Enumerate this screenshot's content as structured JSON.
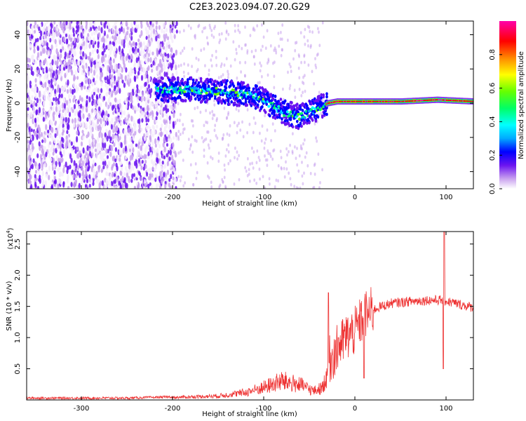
{
  "title": "C2E3.2023.094.07.20.G29",
  "colors": {
    "snr_line": "#ee3333",
    "spectral_colormap": [
      "#f4ecfb",
      "#c9a2ef",
      "#6b14f0",
      "#0000ff",
      "#00aaff",
      "#00ffff",
      "#00ff66",
      "#66ff00",
      "#ffff00",
      "#ff8800",
      "#ff0000",
      "#ff00aa"
    ]
  },
  "chart_data": [
    {
      "type": "heatmap",
      "xlabel": "Height of straight line (km)",
      "ylabel": "Frequency (Hz)",
      "xlim": [
        -360,
        130
      ],
      "ylim": [
        -50,
        48
      ],
      "x_ticks": [
        -300,
        -200,
        -100,
        0,
        100
      ],
      "x_tick_labels": [
        "-300",
        "-200",
        "-100",
        "0",
        "100"
      ],
      "y_ticks": [
        -40,
        -20,
        0,
        20,
        40
      ],
      "y_tick_labels": [
        "-40",
        "-20",
        "0",
        "20",
        "40"
      ],
      "colorbar": {
        "label": "Normalized spectral amplitude",
        "range": [
          0.0,
          1.0
        ],
        "ticks": [
          0.0,
          0.2,
          0.4,
          0.6,
          0.8
        ],
        "tick_labels": [
          "0.0",
          "0.2",
          "0.4",
          "0.6",
          "0.8"
        ]
      },
      "signal_ridge": [
        {
          "x": -215,
          "y": 8
        },
        {
          "x": -180,
          "y": 8
        },
        {
          "x": -150,
          "y": 7
        },
        {
          "x": -120,
          "y": 5
        },
        {
          "x": -100,
          "y": 2
        },
        {
          "x": -80,
          "y": -5
        },
        {
          "x": -60,
          "y": -8
        },
        {
          "x": -45,
          "y": -4
        },
        {
          "x": -30,
          "y": 0
        },
        {
          "x": -20,
          "y": 1
        },
        {
          "x": 0,
          "y": 1
        },
        {
          "x": 50,
          "y": 1
        },
        {
          "x": 90,
          "y": 2
        },
        {
          "x": 130,
          "y": 1
        }
      ]
    },
    {
      "type": "line",
      "xlabel": "Height of straight line (km)",
      "ylabel": "SNR (10 * v/v)",
      "y_multiplier": "(x10",
      "y_multiplier_exp": "4",
      "y_multiplier_close": ")",
      "xlim": [
        -360,
        130
      ],
      "ylim": [
        0,
        2.7
      ],
      "x_ticks": [
        -300,
        -200,
        -100,
        0,
        100
      ],
      "x_tick_labels": [
        "-300",
        "-200",
        "-100",
        "0",
        "100"
      ],
      "y_ticks": [
        0.5,
        1.0,
        1.5,
        2.0,
        2.5
      ],
      "y_tick_labels": [
        "0.5",
        "1.0",
        "1.5",
        "2.0",
        "2.5"
      ],
      "envelope": [
        {
          "x": -360,
          "y": 0.03
        },
        {
          "x": -250,
          "y": 0.03
        },
        {
          "x": -200,
          "y": 0.05
        },
        {
          "x": -150,
          "y": 0.08
        },
        {
          "x": -120,
          "y": 0.15
        },
        {
          "x": -100,
          "y": 0.25
        },
        {
          "x": -80,
          "y": 0.38
        },
        {
          "x": -60,
          "y": 0.3
        },
        {
          "x": -45,
          "y": 0.18
        },
        {
          "x": -35,
          "y": 0.25
        },
        {
          "x": -30,
          "y": 0.6
        },
        {
          "x": -20,
          "y": 0.8
        },
        {
          "x": -10,
          "y": 1.0
        },
        {
          "x": 0,
          "y": 1.1
        },
        {
          "x": 10,
          "y": 1.35
        },
        {
          "x": 25,
          "y": 1.48
        },
        {
          "x": 40,
          "y": 1.55
        },
        {
          "x": 60,
          "y": 1.58
        },
        {
          "x": 80,
          "y": 1.6
        },
        {
          "x": 95,
          "y": 1.6
        },
        {
          "x": 110,
          "y": 1.55
        },
        {
          "x": 130,
          "y": 1.48
        }
      ],
      "peaks": [
        {
          "x": -29,
          "y": 1.72
        },
        {
          "x": -18,
          "y": 1.0
        },
        {
          "x": 10,
          "y": 0.35
        },
        {
          "x": 98,
          "y": 2.75
        },
        {
          "x": 97,
          "y": 0.5
        }
      ]
    }
  ]
}
